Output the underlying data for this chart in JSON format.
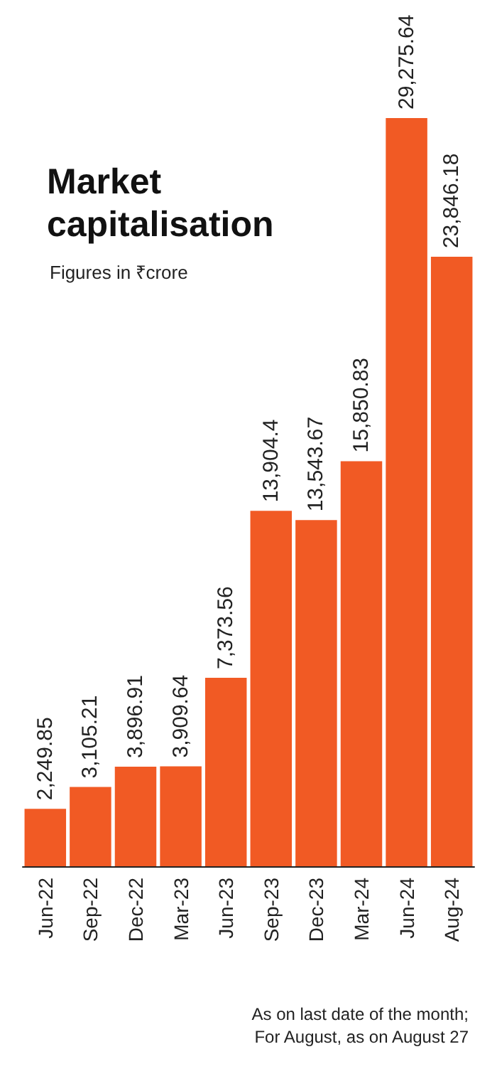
{
  "chart_data": {
    "type": "bar",
    "title": "Market capitalisation",
    "subtitle": "Figures in ₹crore",
    "categories": [
      "Jun-22",
      "Sep-22",
      "Dec-22",
      "Mar-23",
      "Jun-23",
      "Sep-23",
      "Dec-23",
      "Mar-24",
      "Jun-24",
      "Aug-24"
    ],
    "values": [
      2249.85,
      3105.21,
      3896.91,
      3909.64,
      7373.56,
      13904.4,
      13543.67,
      15850.83,
      29275.64,
      23846.18
    ],
    "value_labels": [
      "2,249.85",
      "3,105.21",
      "3,896.91",
      "3,909.64",
      "7,373.56",
      "13,904.4",
      "13,543.67",
      "15,850.83",
      "29,275.64",
      "23,846.18"
    ],
    "color": "#f15a24",
    "annotations": [
      "As on last date of the month;",
      "For August, as on August 27"
    ]
  }
}
